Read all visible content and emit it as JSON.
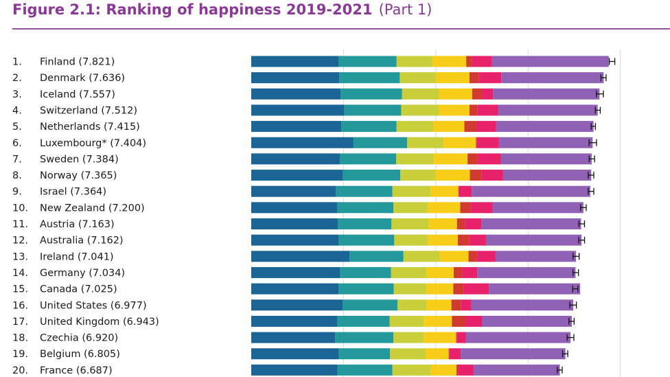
{
  "title": {
    "main": "Figure 2.1: Ranking of happiness 2019-2021",
    "part": "(Part 1)"
  },
  "colors": {
    "title": "#8a3a96",
    "components": [
      "#1a6496",
      "#23999b",
      "#c8cf3a",
      "#f7cd17",
      "#cf3b2e",
      "#e8226a",
      "#9061b4"
    ]
  },
  "chart_data": {
    "type": "bar",
    "orientation": "horizontal",
    "stacked": true,
    "grid": true,
    "legend": "none",
    "xlim": [
      0,
      8.2
    ],
    "categories": [
      "1.",
      "2.",
      "3.",
      "4.",
      "5.",
      "6.",
      "7.",
      "8.",
      "9.",
      "10.",
      "11.",
      "12.",
      "13.",
      "14.",
      "15.",
      "16.",
      "17.",
      "18.",
      "19.",
      "20."
    ],
    "labels": [
      "Finland (7.821)",
      "Denmark (7.636)",
      "Iceland (7.557)",
      "Switzerland (7.512)",
      "Netherlands (7.415)",
      "Luxembourg* (7.404)",
      "Sweden (7.384)",
      "Norway (7.365)",
      "Israel (7.364)",
      "New Zealand (7.200)",
      "Austria (7.163)",
      "Australia (7.162)",
      "Ireland (7.041)",
      "Germany (7.034)",
      "Canada (7.025)",
      "United States (6.977)",
      "United Kingdom (6.943)",
      "Czechia (6.920)",
      "Belgium (6.805)",
      "France (6.687)"
    ],
    "totals": [
      7.821,
      7.636,
      7.557,
      7.512,
      7.415,
      7.404,
      7.384,
      7.365,
      7.364,
      7.2,
      7.163,
      7.162,
      7.041,
      7.034,
      7.025,
      6.977,
      6.943,
      6.92,
      6.805,
      6.687
    ],
    "series": [
      {
        "values": [
          1.89,
          1.91,
          1.94,
          2.02,
          1.95,
          2.21,
          1.92,
          1.99,
          1.83,
          1.86,
          1.88,
          1.89,
          2.13,
          1.93,
          1.89,
          1.98,
          1.86,
          1.82,
          1.9,
          1.87
        ]
      },
      {
        "values": [
          1.26,
          1.31,
          1.33,
          1.23,
          1.2,
          1.17,
          1.22,
          1.24,
          1.23,
          1.22,
          1.16,
          1.21,
          1.17,
          1.1,
          1.2,
          1.19,
          1.14,
          1.26,
          1.11,
          1.19
        ]
      },
      {
        "values": [
          0.78,
          0.78,
          0.8,
          0.82,
          0.8,
          0.79,
          0.82,
          0.77,
          0.83,
          0.75,
          0.81,
          0.73,
          0.79,
          0.77,
          0.71,
          0.63,
          0.74,
          0.66,
          0.77,
          0.83
        ]
      },
      {
        "values": [
          0.73,
          0.73,
          0.72,
          0.66,
          0.67,
          0.7,
          0.73,
          0.74,
          0.6,
          0.7,
          0.61,
          0.65,
          0.62,
          0.59,
          0.58,
          0.54,
          0.61,
          0.7,
          0.5,
          0.56
        ]
      },
      {
        "values": [
          0.13,
          0.2,
          0.21,
          0.17,
          0.26,
          0.02,
          0.22,
          0.25,
          0.01,
          0.23,
          0.17,
          0.24,
          0.18,
          0.18,
          0.22,
          0.21,
          0.3,
          0.02,
          0.01,
          0.03
        ]
      },
      {
        "values": [
          0.43,
          0.49,
          0.24,
          0.45,
          0.43,
          0.48,
          0.5,
          0.47,
          0.28,
          0.47,
          0.36,
          0.37,
          0.4,
          0.33,
          0.55,
          0.22,
          0.35,
          0.19,
          0.25,
          0.34
        ]
      },
      {
        "values": [
          2.53,
          2.22,
          2.31,
          2.16,
          2.11,
          2.03,
          1.97,
          1.91,
          2.57,
          1.97,
          2.16,
          2.07,
          1.75,
          2.13,
          1.98,
          2.21,
          1.95,
          2.27,
          2.27,
          1.87
        ]
      }
    ],
    "ci": [
      [
        7.762,
        7.881
      ],
      [
        7.58,
        7.692
      ],
      [
        7.48,
        7.634
      ],
      [
        7.458,
        7.566
      ],
      [
        7.369,
        7.461
      ],
      [
        7.324,
        7.484
      ],
      [
        7.326,
        7.442
      ],
      [
        7.305,
        7.425
      ],
      [
        7.303,
        7.425
      ],
      [
        7.139,
        7.261
      ],
      [
        7.102,
        7.224
      ],
      [
        7.099,
        7.225
      ],
      [
        6.974,
        7.108
      ],
      [
        6.974,
        7.094
      ],
      [
        6.969,
        7.081
      ],
      [
        6.906,
        7.048
      ],
      [
        6.887,
        6.999
      ],
      [
        6.847,
        6.993
      ],
      [
        6.749,
        6.861
      ],
      [
        6.634,
        6.74
      ]
    ]
  }
}
